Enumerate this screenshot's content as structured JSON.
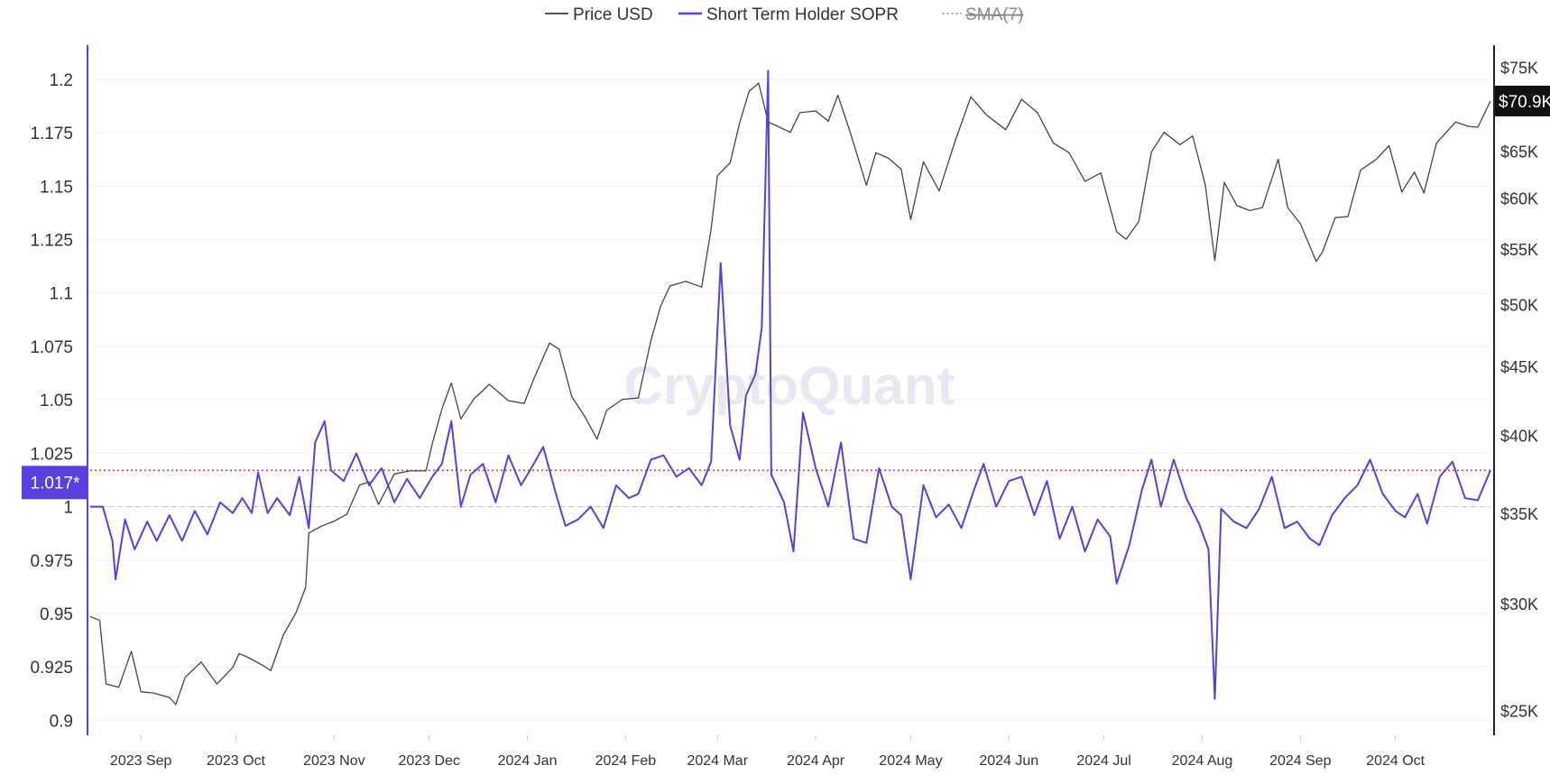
{
  "chart_data": {
    "type": "line",
    "title": "",
    "watermark": "CryptoQuant",
    "legend": {
      "placement": "top-center",
      "items": [
        {
          "label": "Price USD",
          "color": "#555555",
          "style": "solid"
        },
        {
          "label": "Short Term Holder SOPR",
          "color": "#5a3fe0",
          "style": "solid"
        },
        {
          "label": "SMA(7)",
          "color": "#bbbbbb",
          "style": "dashed",
          "disabled": true
        }
      ]
    },
    "x_axis": {
      "labels": [
        "2023 Sep",
        "2023 Oct",
        "2023 Nov",
        "2023 Dec",
        "2024 Jan",
        "2024 Feb",
        "2024 Mar",
        "2024 Apr",
        "2024 May",
        "2024 Jun",
        "2024 Jul",
        "2024 Aug",
        "2024 Sep",
        "2024 Oct"
      ],
      "range": [
        "2023-08-16",
        "2024-10-31"
      ]
    },
    "y_left": {
      "ticks": [
        "1.2",
        "1.175",
        "1.15",
        "1.125",
        "1.1",
        "1.075",
        "1.05",
        "1.025",
        "1",
        "0.975",
        "0.95",
        "0.925",
        "0.9"
      ],
      "range": [
        0.893,
        1.216
      ]
    },
    "y_right": {
      "scale": "log",
      "ticks": [
        "$75K",
        "$70K",
        "$65K",
        "$60K",
        "$55K",
        "$50K",
        "$45K",
        "$40K",
        "$35K",
        "$30K",
        "$25K"
      ],
      "range": [
        24000,
        78000
      ]
    },
    "reference_lines": [
      {
        "axis": "left",
        "value": 1.017,
        "label": "1.017*",
        "color": "#e23b3b",
        "style": "dotted"
      },
      {
        "axis": "left",
        "value": 1.0,
        "color": "#c8c8c8",
        "style": "dashed"
      }
    ],
    "current_price_label": "$70.9K",
    "series": [
      {
        "name": "Price USD",
        "axis": "right",
        "color": "#444444",
        "points": [
          [
            "2023-08-16",
            29400
          ],
          [
            "2023-08-19",
            29200
          ],
          [
            "2023-08-21",
            26200
          ],
          [
            "2023-08-25",
            26050
          ],
          [
            "2023-08-29",
            27700
          ],
          [
            "2023-09-01",
            25850
          ],
          [
            "2023-09-05",
            25800
          ],
          [
            "2023-09-10",
            25600
          ],
          [
            "2023-09-12",
            25300
          ],
          [
            "2023-09-15",
            26500
          ],
          [
            "2023-09-20",
            27200
          ],
          [
            "2023-09-25",
            26200
          ],
          [
            "2023-09-30",
            26950
          ],
          [
            "2023-10-02",
            27600
          ],
          [
            "2023-10-05",
            27400
          ],
          [
            "2023-10-10",
            27000
          ],
          [
            "2023-10-12",
            26800
          ],
          [
            "2023-10-16",
            28500
          ],
          [
            "2023-10-20",
            29600
          ],
          [
            "2023-10-23",
            30900
          ],
          [
            "2023-10-24",
            33900
          ],
          [
            "2023-10-28",
            34300
          ],
          [
            "2023-11-01",
            34600
          ],
          [
            "2023-11-05",
            35000
          ],
          [
            "2023-11-09",
            36800
          ],
          [
            "2023-11-12",
            37000
          ],
          [
            "2023-11-15",
            35600
          ],
          [
            "2023-11-20",
            37500
          ],
          [
            "2023-11-25",
            37700
          ],
          [
            "2023-11-30",
            37700
          ],
          [
            "2023-12-02",
            39500
          ],
          [
            "2023-12-05",
            41900
          ],
          [
            "2023-12-08",
            43800
          ],
          [
            "2023-12-11",
            41200
          ],
          [
            "2023-12-15",
            42600
          ],
          [
            "2023-12-20",
            43700
          ],
          [
            "2023-12-26",
            42500
          ],
          [
            "2023-12-31",
            42300
          ],
          [
            "2024-01-03",
            44100
          ],
          [
            "2024-01-08",
            46900
          ],
          [
            "2024-01-11",
            46400
          ],
          [
            "2024-01-15",
            42800
          ],
          [
            "2024-01-19",
            41400
          ],
          [
            "2024-01-23",
            39800
          ],
          [
            "2024-01-26",
            41800
          ],
          [
            "2024-01-31",
            42600
          ],
          [
            "2024-02-05",
            42700
          ],
          [
            "2024-02-09",
            47100
          ],
          [
            "2024-02-12",
            49900
          ],
          [
            "2024-02-15",
            51700
          ],
          [
            "2024-02-20",
            52100
          ],
          [
            "2024-02-25",
            51600
          ],
          [
            "2024-02-28",
            57000
          ],
          [
            "2024-03-01",
            62400
          ],
          [
            "2024-03-05",
            63800
          ],
          [
            "2024-03-08",
            68300
          ],
          [
            "2024-03-11",
            72100
          ],
          [
            "2024-03-14",
            73100
          ],
          [
            "2024-03-17",
            68400
          ],
          [
            "2024-03-20",
            67900
          ],
          [
            "2024-03-24",
            67200
          ],
          [
            "2024-03-27",
            69500
          ],
          [
            "2024-04-01",
            69700
          ],
          [
            "2024-04-05",
            68500
          ],
          [
            "2024-04-08",
            71600
          ],
          [
            "2024-04-12",
            67100
          ],
          [
            "2024-04-17",
            61400
          ],
          [
            "2024-04-20",
            64900
          ],
          [
            "2024-04-24",
            64300
          ],
          [
            "2024-04-28",
            63100
          ],
          [
            "2024-05-01",
            57900
          ],
          [
            "2024-05-05",
            63900
          ],
          [
            "2024-05-10",
            60800
          ],
          [
            "2024-05-15",
            66200
          ],
          [
            "2024-05-20",
            71400
          ],
          [
            "2024-05-25",
            69200
          ],
          [
            "2024-05-31",
            67500
          ],
          [
            "2024-06-05",
            71100
          ],
          [
            "2024-06-10",
            69500
          ],
          [
            "2024-06-15",
            66000
          ],
          [
            "2024-06-20",
            64900
          ],
          [
            "2024-06-25",
            61800
          ],
          [
            "2024-06-30",
            62700
          ],
          [
            "2024-07-05",
            56700
          ],
          [
            "2024-07-08",
            56000
          ],
          [
            "2024-07-12",
            57700
          ],
          [
            "2024-07-16",
            65000
          ],
          [
            "2024-07-20",
            67200
          ],
          [
            "2024-07-25",
            65800
          ],
          [
            "2024-07-29",
            66800
          ],
          [
            "2024-08-02",
            61400
          ],
          [
            "2024-08-05",
            54000
          ],
          [
            "2024-08-08",
            61700
          ],
          [
            "2024-08-12",
            59300
          ],
          [
            "2024-08-16",
            58800
          ],
          [
            "2024-08-20",
            59100
          ],
          [
            "2024-08-25",
            64200
          ],
          [
            "2024-08-28",
            59100
          ],
          [
            "2024-09-01",
            57500
          ],
          [
            "2024-09-06",
            53900
          ],
          [
            "2024-09-08",
            54800
          ],
          [
            "2024-09-12",
            58100
          ],
          [
            "2024-09-16",
            58200
          ],
          [
            "2024-09-20",
            63000
          ],
          [
            "2024-09-25",
            64200
          ],
          [
            "2024-09-29",
            65700
          ],
          [
            "2024-10-03",
            60700
          ],
          [
            "2024-10-07",
            62800
          ],
          [
            "2024-10-10",
            60600
          ],
          [
            "2024-10-14",
            66000
          ],
          [
            "2024-10-20",
            68400
          ],
          [
            "2024-10-24",
            67900
          ],
          [
            "2024-10-27",
            67800
          ],
          [
            "2024-10-31",
            70900
          ]
        ]
      },
      {
        "name": "Short Term Holder SOPR",
        "axis": "left",
        "color": "#5a3fe0",
        "points": [
          [
            "2023-08-16",
            1.0
          ],
          [
            "2023-08-20",
            1.0
          ],
          [
            "2023-08-23",
            0.984
          ],
          [
            "2023-08-24",
            0.966
          ],
          [
            "2023-08-27",
            0.994
          ],
          [
            "2023-08-30",
            0.98
          ],
          [
            "2023-09-03",
            0.993
          ],
          [
            "2023-09-06",
            0.984
          ],
          [
            "2023-09-10",
            0.996
          ],
          [
            "2023-09-14",
            0.984
          ],
          [
            "2023-09-18",
            0.998
          ],
          [
            "2023-09-22",
            0.987
          ],
          [
            "2023-09-26",
            1.002
          ],
          [
            "2023-09-30",
            0.997
          ],
          [
            "2023-10-03",
            1.004
          ],
          [
            "2023-10-06",
            0.997
          ],
          [
            "2023-10-08",
            1.016
          ],
          [
            "2023-10-11",
            0.997
          ],
          [
            "2023-10-14",
            1.004
          ],
          [
            "2023-10-18",
            0.996
          ],
          [
            "2023-10-21",
            1.014
          ],
          [
            "2023-10-24",
            0.99
          ],
          [
            "2023-10-26",
            1.03
          ],
          [
            "2023-10-29",
            1.04
          ],
          [
            "2023-10-31",
            1.017
          ],
          [
            "2023-11-04",
            1.012
          ],
          [
            "2023-11-08",
            1.025
          ],
          [
            "2023-11-12",
            1.01
          ],
          [
            "2023-11-16",
            1.018
          ],
          [
            "2023-11-20",
            1.002
          ],
          [
            "2023-11-24",
            1.013
          ],
          [
            "2023-11-28",
            1.004
          ],
          [
            "2023-12-02",
            1.014
          ],
          [
            "2023-12-05",
            1.02
          ],
          [
            "2023-12-08",
            1.04
          ],
          [
            "2023-12-11",
            1.0
          ],
          [
            "2023-12-14",
            1.015
          ],
          [
            "2023-12-18",
            1.02
          ],
          [
            "2023-12-22",
            1.002
          ],
          [
            "2023-12-26",
            1.024
          ],
          [
            "2023-12-30",
            1.01
          ],
          [
            "2024-01-03",
            1.02
          ],
          [
            "2024-01-06",
            1.028
          ],
          [
            "2024-01-10",
            1.006
          ],
          [
            "2024-01-13",
            0.991
          ],
          [
            "2024-01-17",
            0.994
          ],
          [
            "2024-01-21",
            1.0
          ],
          [
            "2024-01-25",
            0.99
          ],
          [
            "2024-01-29",
            1.01
          ],
          [
            "2024-02-02",
            1.004
          ],
          [
            "2024-02-05",
            1.006
          ],
          [
            "2024-02-09",
            1.022
          ],
          [
            "2024-02-13",
            1.024
          ],
          [
            "2024-02-17",
            1.014
          ],
          [
            "2024-02-21",
            1.018
          ],
          [
            "2024-02-25",
            1.01
          ],
          [
            "2024-02-28",
            1.021
          ],
          [
            "2024-03-02",
            1.114
          ],
          [
            "2024-03-05",
            1.038
          ],
          [
            "2024-03-08",
            1.022
          ],
          [
            "2024-03-10",
            1.052
          ],
          [
            "2024-03-13",
            1.062
          ],
          [
            "2024-03-15",
            1.084
          ],
          [
            "2024-03-17",
            1.204
          ],
          [
            "2024-03-18",
            1.015
          ],
          [
            "2024-03-22",
            1.002
          ],
          [
            "2024-03-25",
            0.979
          ],
          [
            "2024-03-28",
            1.044
          ],
          [
            "2024-04-01",
            1.018
          ],
          [
            "2024-04-05",
            1.0
          ],
          [
            "2024-04-09",
            1.03
          ],
          [
            "2024-04-13",
            0.985
          ],
          [
            "2024-04-17",
            0.983
          ],
          [
            "2024-04-21",
            1.018
          ],
          [
            "2024-04-25",
            1.0
          ],
          [
            "2024-04-28",
            0.996
          ],
          [
            "2024-05-01",
            0.966
          ],
          [
            "2024-05-05",
            1.01
          ],
          [
            "2024-05-09",
            0.995
          ],
          [
            "2024-05-13",
            1.001
          ],
          [
            "2024-05-17",
            0.99
          ],
          [
            "2024-05-21",
            1.008
          ],
          [
            "2024-05-24",
            1.02
          ],
          [
            "2024-05-28",
            1.0
          ],
          [
            "2024-06-01",
            1.012
          ],
          [
            "2024-06-05",
            1.014
          ],
          [
            "2024-06-09",
            0.996
          ],
          [
            "2024-06-13",
            1.012
          ],
          [
            "2024-06-17",
            0.985
          ],
          [
            "2024-06-21",
            1.0
          ],
          [
            "2024-06-25",
            0.979
          ],
          [
            "2024-06-29",
            0.994
          ],
          [
            "2024-07-03",
            0.986
          ],
          [
            "2024-07-05",
            0.964
          ],
          [
            "2024-07-09",
            0.982
          ],
          [
            "2024-07-13",
            1.008
          ],
          [
            "2024-07-16",
            1.022
          ],
          [
            "2024-07-19",
            1.0
          ],
          [
            "2024-07-23",
            1.022
          ],
          [
            "2024-07-27",
            1.004
          ],
          [
            "2024-07-31",
            0.992
          ],
          [
            "2024-08-03",
            0.98
          ],
          [
            "2024-08-05",
            0.91
          ],
          [
            "2024-08-07",
            0.999
          ],
          [
            "2024-08-11",
            0.993
          ],
          [
            "2024-08-15",
            0.99
          ],
          [
            "2024-08-19",
            0.999
          ],
          [
            "2024-08-23",
            1.014
          ],
          [
            "2024-08-27",
            0.99
          ],
          [
            "2024-08-31",
            0.993
          ],
          [
            "2024-09-04",
            0.985
          ],
          [
            "2024-09-07",
            0.982
          ],
          [
            "2024-09-11",
            0.996
          ],
          [
            "2024-09-15",
            1.004
          ],
          [
            "2024-09-19",
            1.01
          ],
          [
            "2024-09-23",
            1.022
          ],
          [
            "2024-09-27",
            1.006
          ],
          [
            "2024-10-01",
            0.998
          ],
          [
            "2024-10-04",
            0.995
          ],
          [
            "2024-10-08",
            1.006
          ],
          [
            "2024-10-11",
            0.992
          ],
          [
            "2024-10-15",
            1.014
          ],
          [
            "2024-10-19",
            1.021
          ],
          [
            "2024-10-23",
            1.004
          ],
          [
            "2024-10-27",
            1.003
          ],
          [
            "2024-10-31",
            1.017
          ]
        ]
      }
    ]
  }
}
